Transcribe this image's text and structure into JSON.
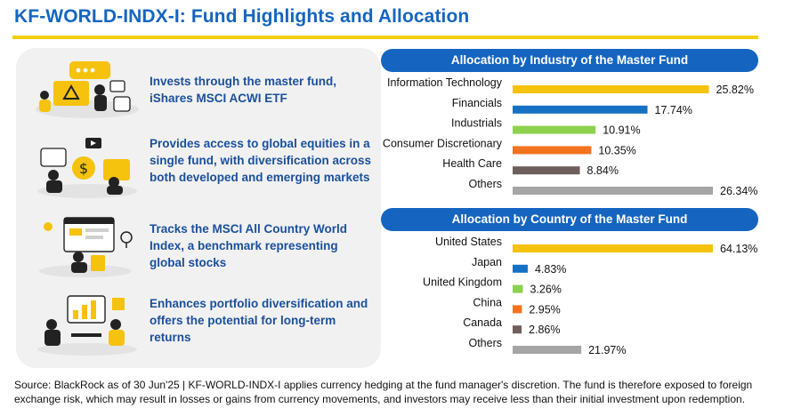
{
  "title": "KF-WORLD-INDX-I: Fund Highlights and Allocation",
  "highlights": [
    {
      "text": "Invests through the master fund, iShares MSCI ACWI ETF"
    },
    {
      "text": "Provides access to global equities in a single fund, with diversification across both developed and emerging markets"
    },
    {
      "text": "Tracks the MSCI All Country World Index, a benchmark representing global stocks"
    },
    {
      "text": "Enhances portfolio diversification and offers the potential for long-term returns"
    }
  ],
  "colors": {
    "title": "#1565c0",
    "header_bg": "#1565c0",
    "rule": "#f5cd12",
    "highlight_text": "#1b4f9c",
    "panel_bg": "#f1f1f1"
  },
  "chart_data": [
    {
      "type": "bar",
      "orientation": "horizontal",
      "title": "Allocation by Industry of the Master Fund",
      "categories": [
        "Information Technology",
        "Financials",
        "Industrials",
        "Consumer Discretionary",
        "Health Care",
        "Others"
      ],
      "values": [
        25.82,
        17.74,
        10.91,
        10.35,
        8.84,
        26.34
      ],
      "value_labels": [
        "25.82%",
        "17.74%",
        "10.91%",
        "10.35%",
        "8.84%",
        "26.34%"
      ],
      "colors": [
        "#f5c20e",
        "#1670c4",
        "#8ed14e",
        "#f4731f",
        "#6d5f5c",
        "#a5a5a5"
      ],
      "xlim": [
        0,
        26.34
      ],
      "grid": false
    },
    {
      "type": "bar",
      "orientation": "horizontal",
      "title": "Allocation by Country of the Master Fund",
      "categories": [
        "United States",
        "Japan",
        "United Kingdom",
        "China",
        "Canada",
        "Others"
      ],
      "values": [
        64.13,
        4.83,
        3.26,
        2.95,
        2.86,
        21.97
      ],
      "value_labels": [
        "64.13%",
        "4.83%",
        "3.26%",
        "2.95%",
        "2.86%",
        "21.97%"
      ],
      "colors": [
        "#f5c20e",
        "#1670c4",
        "#8ed14e",
        "#f4731f",
        "#6d5f5c",
        "#a5a5a5"
      ],
      "xlim": [
        0,
        64.13
      ],
      "grid": false
    }
  ],
  "footnote": "Source: BlackRock as of 30 Jun'25 | KF-WORLD-INDX-I applies currency hedging at the fund manager's discretion. The fund is therefore exposed to foreign exchange risk, which may result in losses or gains from currency movements, and investors may receive less than their initial investment upon redemption."
}
